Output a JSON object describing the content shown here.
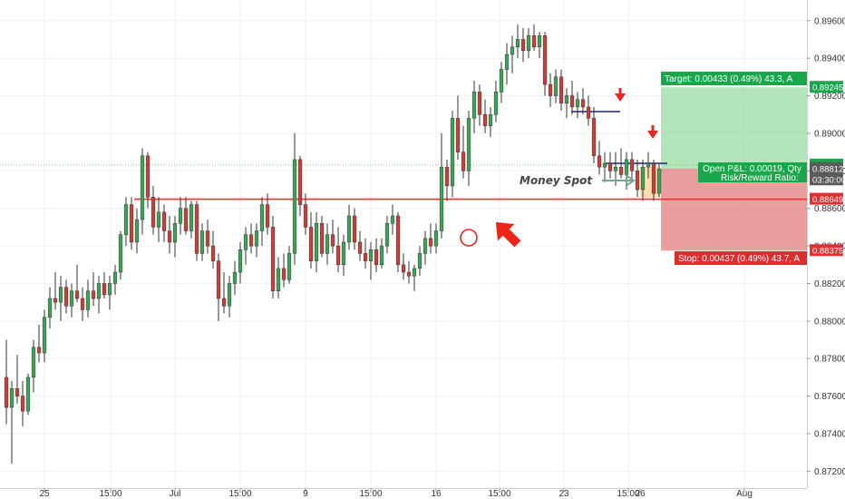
{
  "chart_data": {
    "type": "candlestick",
    "title": "",
    "xlabel": "",
    "ylabel": "",
    "ylim": [
      0.8711,
      0.8971
    ],
    "grid": true,
    "y_ticks": [
      "0.89600",
      "0.89400",
      "0.89200",
      "0.89000",
      "0.88800",
      "0.88600",
      "0.88400",
      "0.88200",
      "0.88000",
      "0.87800",
      "0.87600",
      "0.87400",
      "0.87200"
    ],
    "x_ticks": [
      "25",
      "15:00",
      "Jul",
      "15:00",
      "9",
      "15:00",
      "16",
      "15:00",
      "23",
      "15:00",
      "26",
      "Aug"
    ],
    "price_tags": [
      {
        "text": "0.89245",
        "value": 0.89245,
        "color": "#1aa64a"
      },
      {
        "text": "0.88831",
        "value": 0.88831,
        "color": "#1aa64a"
      },
      {
        "text": "03:30:00",
        "value": 0.88752,
        "color": "#5b5b5b"
      },
      {
        "text": "0.88812",
        "value": 0.88812,
        "color": "#5b5b5b"
      },
      {
        "text": "0.88649",
        "value": 0.88649,
        "color": "#e03030"
      },
      {
        "text": "0.88375",
        "value": 0.88375,
        "color": "#e03030"
      }
    ],
    "horizontal_levels": [
      {
        "name": "support",
        "value": 0.88649,
        "color": "#ff2d2d"
      },
      {
        "name": "current",
        "value": 0.88831,
        "color": "#4caf50"
      }
    ],
    "position": {
      "entry": 0.88812,
      "target": 0.89245,
      "stop": 0.88375,
      "target_label": "Target: 0.00433 (0.49%) 43.3, A",
      "stop_label": "Stop: 0.00437 (0.49%) 43.7, A",
      "pnl_label": "Open P&L: 0.00019, Qty",
      "rr_label": "Risk/Reward Ratio:"
    },
    "annotations": {
      "money_spot": "Money Spot"
    },
    "series": [
      {
        "name": "",
        "ohlc": [
          [
            0.877,
            0.879,
            0.8745,
            0.8754
          ],
          [
            0.8754,
            0.8768,
            0.8724,
            0.8764
          ],
          [
            0.8764,
            0.8782,
            0.8756,
            0.876
          ],
          [
            0.876,
            0.8768,
            0.8744,
            0.8752
          ],
          [
            0.8752,
            0.8772,
            0.875,
            0.877
          ],
          [
            0.877,
            0.879,
            0.8762,
            0.8786
          ],
          [
            0.8786,
            0.8798,
            0.8778,
            0.8783
          ],
          [
            0.8783,
            0.8806,
            0.8778,
            0.8802
          ],
          [
            0.8802,
            0.8818,
            0.8796,
            0.8812
          ],
          [
            0.8812,
            0.8826,
            0.8806,
            0.881
          ],
          [
            0.881,
            0.8824,
            0.88,
            0.8818
          ],
          [
            0.8818,
            0.8822,
            0.8804,
            0.8808
          ],
          [
            0.8808,
            0.882,
            0.8802,
            0.8816
          ],
          [
            0.8816,
            0.883,
            0.881,
            0.8812
          ],
          [
            0.8812,
            0.8818,
            0.88,
            0.8806
          ],
          [
            0.8806,
            0.8822,
            0.8802,
            0.8816
          ],
          [
            0.8816,
            0.8826,
            0.8808,
            0.8812
          ],
          [
            0.8812,
            0.8824,
            0.8804,
            0.882
          ],
          [
            0.882,
            0.8826,
            0.8812,
            0.8814
          ],
          [
            0.8814,
            0.8824,
            0.8806,
            0.882
          ],
          [
            0.882,
            0.883,
            0.8814,
            0.8826
          ],
          [
            0.8826,
            0.8848,
            0.8822,
            0.8846
          ],
          [
            0.8846,
            0.8866,
            0.884,
            0.8862
          ],
          [
            0.8862,
            0.8866,
            0.8838,
            0.8842
          ],
          [
            0.8842,
            0.886,
            0.8836,
            0.8854
          ],
          [
            0.8854,
            0.8892,
            0.8846,
            0.8888
          ],
          [
            0.8888,
            0.889,
            0.886,
            0.8866
          ],
          [
            0.8866,
            0.8872,
            0.8846,
            0.885
          ],
          [
            0.885,
            0.8866,
            0.8842,
            0.8858
          ],
          [
            0.8858,
            0.8862,
            0.8842,
            0.8848
          ],
          [
            0.8848,
            0.8856,
            0.8836,
            0.8842
          ],
          [
            0.8842,
            0.8856,
            0.8834,
            0.8852
          ],
          [
            0.8852,
            0.8866,
            0.8846,
            0.886
          ],
          [
            0.886,
            0.8866,
            0.8846,
            0.8848
          ],
          [
            0.8848,
            0.8864,
            0.8844,
            0.8862
          ],
          [
            0.8862,
            0.8864,
            0.8832,
            0.8836
          ],
          [
            0.8836,
            0.8852,
            0.8832,
            0.8848
          ],
          [
            0.8848,
            0.8854,
            0.8836,
            0.884
          ],
          [
            0.884,
            0.8848,
            0.8828,
            0.8832
          ],
          [
            0.8832,
            0.8836,
            0.88,
            0.8812
          ],
          [
            0.8812,
            0.8826,
            0.8804,
            0.8808
          ],
          [
            0.8808,
            0.8824,
            0.8802,
            0.882
          ],
          [
            0.882,
            0.8832,
            0.8814,
            0.8826
          ],
          [
            0.8826,
            0.8842,
            0.882,
            0.8838
          ],
          [
            0.8838,
            0.885,
            0.883,
            0.8846
          ],
          [
            0.8846,
            0.8852,
            0.8836,
            0.884
          ],
          [
            0.884,
            0.8852,
            0.8834,
            0.8848
          ],
          [
            0.8848,
            0.8866,
            0.884,
            0.8862
          ],
          [
            0.8862,
            0.8868,
            0.8846,
            0.885
          ],
          [
            0.885,
            0.8856,
            0.8812,
            0.8816
          ],
          [
            0.8816,
            0.8834,
            0.8812,
            0.8828
          ],
          [
            0.8828,
            0.8836,
            0.8818,
            0.8822
          ],
          [
            0.8822,
            0.884,
            0.882,
            0.8836
          ],
          [
            0.8836,
            0.89,
            0.883,
            0.8886
          ],
          [
            0.8886,
            0.8888,
            0.8856,
            0.8862
          ],
          [
            0.8862,
            0.8868,
            0.8846,
            0.885
          ],
          [
            0.885,
            0.8858,
            0.8828,
            0.8832
          ],
          [
            0.8832,
            0.8858,
            0.8826,
            0.8852
          ],
          [
            0.8852,
            0.8856,
            0.8834,
            0.8836
          ],
          [
            0.8836,
            0.8852,
            0.883,
            0.8846
          ],
          [
            0.8846,
            0.8854,
            0.8836,
            0.884
          ],
          [
            0.884,
            0.885,
            0.8826,
            0.883
          ],
          [
            0.883,
            0.8846,
            0.8824,
            0.8842
          ],
          [
            0.8842,
            0.8862,
            0.8838,
            0.8856
          ],
          [
            0.8856,
            0.886,
            0.8838,
            0.8842
          ],
          [
            0.8842,
            0.8848,
            0.8832,
            0.8836
          ],
          [
            0.8836,
            0.8844,
            0.8828,
            0.8832
          ],
          [
            0.8832,
            0.8842,
            0.8822,
            0.8838
          ],
          [
            0.8838,
            0.8844,
            0.8826,
            0.883
          ],
          [
            0.883,
            0.8844,
            0.8828,
            0.884
          ],
          [
            0.884,
            0.8856,
            0.8836,
            0.8852
          ],
          [
            0.8852,
            0.8862,
            0.8846,
            0.8856
          ],
          [
            0.8856,
            0.8858,
            0.8826,
            0.883
          ],
          [
            0.883,
            0.8836,
            0.8822,
            0.8826
          ],
          [
            0.8826,
            0.8832,
            0.882,
            0.8824
          ],
          [
            0.8824,
            0.883,
            0.8816,
            0.8828
          ],
          [
            0.8828,
            0.884,
            0.8824,
            0.8836
          ],
          [
            0.8836,
            0.8848,
            0.883,
            0.8844
          ],
          [
            0.8844,
            0.8852,
            0.8836,
            0.884
          ],
          [
            0.884,
            0.8852,
            0.8836,
            0.8848
          ],
          [
            0.8848,
            0.89,
            0.8844,
            0.8882
          ],
          [
            0.8882,
            0.8886,
            0.8864,
            0.8872
          ],
          [
            0.8872,
            0.8912,
            0.8866,
            0.8908
          ],
          [
            0.8908,
            0.892,
            0.8886,
            0.889
          ],
          [
            0.889,
            0.8904,
            0.8876,
            0.888
          ],
          [
            0.888,
            0.8912,
            0.8872,
            0.8908
          ],
          [
            0.8908,
            0.8928,
            0.89,
            0.8922
          ],
          [
            0.8922,
            0.8926,
            0.8904,
            0.891
          ],
          [
            0.891,
            0.8918,
            0.89,
            0.8904
          ],
          [
            0.8904,
            0.8914,
            0.8898,
            0.891
          ],
          [
            0.891,
            0.8928,
            0.8906,
            0.8922
          ],
          [
            0.8922,
            0.8938,
            0.8916,
            0.8934
          ],
          [
            0.8934,
            0.8948,
            0.8926,
            0.8942
          ],
          [
            0.8942,
            0.8952,
            0.8932,
            0.8946
          ],
          [
            0.8946,
            0.8958,
            0.894,
            0.895
          ],
          [
            0.895,
            0.8956,
            0.8938,
            0.8944
          ],
          [
            0.8944,
            0.8956,
            0.894,
            0.8952
          ],
          [
            0.8952,
            0.8958,
            0.8944,
            0.8946
          ],
          [
            0.8946,
            0.8954,
            0.894,
            0.8952
          ],
          [
            0.8952,
            0.8954,
            0.892,
            0.8926
          ],
          [
            0.8926,
            0.8932,
            0.8914,
            0.892
          ],
          [
            0.892,
            0.8934,
            0.8916,
            0.893
          ],
          [
            0.893,
            0.8934,
            0.8912,
            0.8916
          ],
          [
            0.8916,
            0.8924,
            0.8908,
            0.892
          ],
          [
            0.892,
            0.8928,
            0.891,
            0.8914
          ],
          [
            0.8914,
            0.8922,
            0.8908,
            0.8918
          ],
          [
            0.8918,
            0.8924,
            0.891,
            0.8914
          ],
          [
            0.8914,
            0.892,
            0.8904,
            0.8908
          ],
          [
            0.8908,
            0.8914,
            0.8884,
            0.8888
          ],
          [
            0.8888,
            0.8896,
            0.8878,
            0.8882
          ],
          [
            0.8882,
            0.889,
            0.8874,
            0.8884
          ],
          [
            0.8884,
            0.889,
            0.8876,
            0.888
          ],
          [
            0.888,
            0.889,
            0.8872,
            0.8882
          ],
          [
            0.8882,
            0.8892,
            0.8876,
            0.8878
          ],
          [
            0.8878,
            0.889,
            0.887,
            0.8886
          ],
          [
            0.8886,
            0.889,
            0.8876,
            0.888
          ],
          [
            0.888,
            0.8886,
            0.8866,
            0.887
          ],
          [
            0.887,
            0.8886,
            0.8864,
            0.8882
          ],
          [
            0.8882,
            0.889,
            0.8876,
            0.8884
          ],
          [
            0.8884,
            0.8886,
            0.8864,
            0.8868
          ],
          [
            0.8868,
            0.8884,
            0.8866,
            0.8881
          ]
        ]
      }
    ]
  }
}
